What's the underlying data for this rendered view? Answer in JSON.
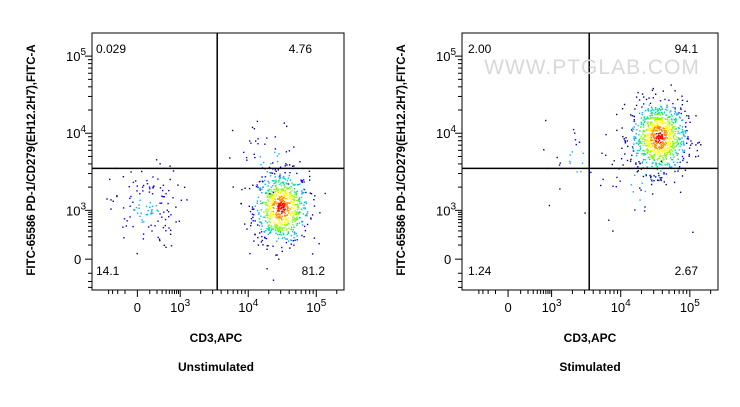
{
  "chart_data": [
    {
      "type": "scatter",
      "title": "Unstimulated",
      "xlabel": "CD3,APC",
      "ylabel": "FITC-65586 PD-1/CD279(EH12.2H7),FITC-A",
      "x_scale": "biexponential",
      "y_scale": "biexponential",
      "x_ticks": [
        {
          "label": "0",
          "value": 0
        },
        {
          "label": "10",
          "exp": "3",
          "value": 1000
        },
        {
          "label": "10",
          "exp": "4",
          "value": 10000
        },
        {
          "label": "10",
          "exp": "5",
          "value": 100000
        }
      ],
      "y_ticks": [
        {
          "label": "0",
          "value": 0
        },
        {
          "label": "10",
          "exp": "3",
          "value": 1000
        },
        {
          "label": "10",
          "exp": "4",
          "value": 10000
        },
        {
          "label": "10",
          "exp": "5",
          "value": 100000
        }
      ],
      "gate": {
        "x": 3500,
        "y": 3500
      },
      "quadrants": {
        "upper_left": "0.029",
        "upper_right": "4.76",
        "lower_left": "14.1",
        "lower_right": "81.2"
      },
      "populations": [
        {
          "center_x": 30000,
          "center_y": 1100,
          "fraction": 0.81,
          "spread": "dense"
        },
        {
          "center_x": 50,
          "center_y": 1100,
          "fraction": 0.14,
          "spread": "sparse"
        },
        {
          "center_x": 20000,
          "center_y": 4500,
          "fraction": 0.05,
          "spread": "sparse"
        }
      ],
      "colormap": [
        "#00008b",
        "#0000ff",
        "#00b4ff",
        "#00e08c",
        "#7cff00",
        "#ffff00",
        "#ff8c00",
        "#ff0000"
      ]
    },
    {
      "type": "scatter",
      "title": "Stimulated",
      "xlabel": "CD3,APC",
      "ylabel": "FITC-65586 PD-1/CD279(EH12.2H7),FITC-A",
      "x_scale": "biexponential",
      "y_scale": "biexponential",
      "x_ticks": [
        {
          "label": "0",
          "value": 0
        },
        {
          "label": "10",
          "exp": "3",
          "value": 1000
        },
        {
          "label": "10",
          "exp": "4",
          "value": 10000
        },
        {
          "label": "10",
          "exp": "5",
          "value": 100000
        }
      ],
      "y_ticks": [
        {
          "label": "0",
          "value": 0
        },
        {
          "label": "10",
          "exp": "3",
          "value": 1000
        },
        {
          "label": "10",
          "exp": "4",
          "value": 10000
        },
        {
          "label": "10",
          "exp": "5",
          "value": 100000
        }
      ],
      "gate": {
        "x": 3500,
        "y": 3500
      },
      "quadrants": {
        "upper_left": "2.00",
        "upper_right": "94.1",
        "lower_left": "1.24",
        "lower_right": "2.67"
      },
      "populations": [
        {
          "center_x": 35000,
          "center_y": 9000,
          "fraction": 0.94,
          "spread": "dense"
        },
        {
          "center_x": 2500,
          "center_y": 4500,
          "fraction": 0.03,
          "spread": "sparse"
        },
        {
          "center_x": 20000,
          "center_y": 2000,
          "fraction": 0.03,
          "spread": "sparse"
        }
      ],
      "colormap": [
        "#00008b",
        "#0000ff",
        "#00b4ff",
        "#00e08c",
        "#7cff00",
        "#ffff00",
        "#ff8c00",
        "#ff0000"
      ]
    }
  ],
  "watermark": "WWW.PTGLAB.COM"
}
